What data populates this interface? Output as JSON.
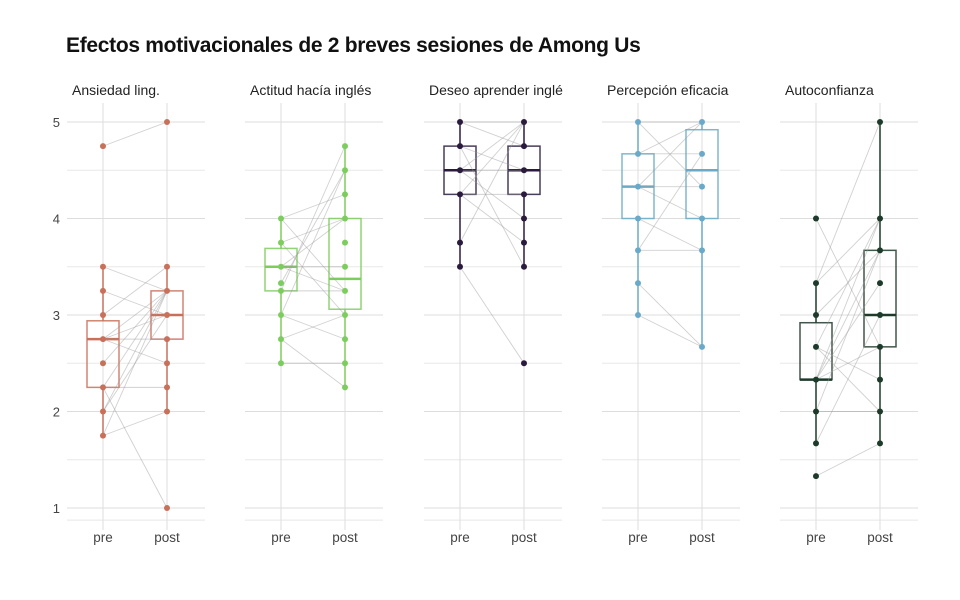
{
  "chart_data": {
    "type": "box",
    "title": "Efectos motivacionales de 2 breves sesiones de Among Us",
    "xlabel": "",
    "ylabel": "",
    "ylim": [
      0.8,
      5.15
    ],
    "yticks": [
      1,
      2,
      3,
      4,
      5
    ],
    "categories": [
      "pre",
      "post"
    ],
    "grid": true,
    "facets": [
      {
        "label": "Ansiedad ling.",
        "color": "#C8705A",
        "boxes": [
          {
            "q1": 2.25,
            "median": 2.75,
            "q3": 2.94,
            "lo": 1.75,
            "hi": 3.5,
            "points": [
              4.75,
              3.5,
              3.25,
              3,
              2.75,
              2.5,
              2.25,
              2,
              1.75
            ]
          },
          {
            "q1": 2.75,
            "median": 3,
            "q3": 3.25,
            "lo": 2,
            "hi": 3.5,
            "points": [
              5,
              3.5,
              3.25,
              3,
              2.75,
              2.5,
              2.25,
              2,
              1
            ]
          }
        ],
        "pairs": [
          [
            4.75,
            5
          ],
          [
            3.5,
            3.25
          ],
          [
            3.25,
            3
          ],
          [
            3,
            3.5
          ],
          [
            2.75,
            3.25
          ],
          [
            2.75,
            3
          ],
          [
            2.75,
            2.75
          ],
          [
            2.75,
            2.5
          ],
          [
            2.5,
            3.25
          ],
          [
            2.25,
            1
          ],
          [
            2.25,
            2.25
          ],
          [
            2.25,
            3.25
          ],
          [
            2,
            3.25
          ],
          [
            2,
            3
          ],
          [
            1.75,
            2
          ],
          [
            1.75,
            3.25
          ]
        ]
      },
      {
        "label": "Actitud hacía inglés",
        "color": "#7DCD5E",
        "boxes": [
          {
            "q1": 3.25,
            "median": 3.5,
            "q3": 3.69,
            "lo": 2.5,
            "hi": 4,
            "points": [
              4,
              3.75,
              3.5,
              3.33,
              3.25,
              3,
              2.75,
              2.5
            ]
          },
          {
            "q1": 3.06,
            "median": 3.375,
            "q3": 4,
            "lo": 2.25,
            "hi": 4.75,
            "points": [
              4.75,
              4.5,
              4.25,
              4,
              3.75,
              3.5,
              3.25,
              3,
              2.75,
              2.5,
              2.25
            ]
          }
        ],
        "pairs": [
          [
            4,
            4.25
          ],
          [
            4,
            3.25
          ],
          [
            3.75,
            4
          ],
          [
            3.75,
            3
          ],
          [
            3.5,
            3.5
          ],
          [
            3.5,
            3.25
          ],
          [
            3.5,
            4
          ],
          [
            3.33,
            4.5
          ],
          [
            3.25,
            4.75
          ],
          [
            3.25,
            3.25
          ],
          [
            3,
            4.5
          ],
          [
            3,
            2.75
          ],
          [
            2.75,
            3
          ],
          [
            2.75,
            2.25
          ],
          [
            2.5,
            2.5
          ]
        ]
      },
      {
        "label": "Deseo aprender inglé",
        "color": "#2A1B3D",
        "boxes": [
          {
            "q1": 4.25,
            "median": 4.5,
            "q3": 4.75,
            "lo": 3.5,
            "hi": 5,
            "points": [
              5,
              4.75,
              4.5,
              4.25,
              3.75,
              3.5
            ]
          },
          {
            "q1": 4.25,
            "median": 4.5,
            "q3": 4.75,
            "lo": 3.5,
            "hi": 5,
            "points": [
              5,
              4.75,
              4.5,
              4.25,
              4,
              3.75,
              3.5,
              2.5
            ]
          }
        ],
        "pairs": [
          [
            5,
            5
          ],
          [
            5,
            4.75
          ],
          [
            4.75,
            4.5
          ],
          [
            4.75,
            3.5
          ],
          [
            4.5,
            4.5
          ],
          [
            4.5,
            5
          ],
          [
            4.5,
            4
          ],
          [
            4.25,
            5
          ],
          [
            4.25,
            4.25
          ],
          [
            4.25,
            3.75
          ],
          [
            3.75,
            5
          ],
          [
            3.5,
            2.5
          ]
        ]
      },
      {
        "label": "Percepción eficacia",
        "color": "#6AAAC8",
        "boxes": [
          {
            "q1": 4,
            "median": 4.33,
            "q3": 4.67,
            "lo": 3,
            "hi": 5,
            "points": [
              5,
              4.67,
              4.33,
              4,
              3.67,
              3.33,
              3
            ]
          },
          {
            "q1": 4,
            "median": 4.5,
            "q3": 4.92,
            "lo": 2.67,
            "hi": 5,
            "points": [
              5,
              4.67,
              4.33,
              4,
              3.67,
              2.67
            ]
          }
        ],
        "pairs": [
          [
            5,
            5
          ],
          [
            5,
            4.33
          ],
          [
            4.67,
            4.67
          ],
          [
            4.67,
            5
          ],
          [
            4.33,
            4.33
          ],
          [
            4.33,
            4
          ],
          [
            4.33,
            5
          ],
          [
            4,
            3.67
          ],
          [
            3.67,
            3.67
          ],
          [
            3.33,
            2.67
          ],
          [
            3,
            2.67
          ],
          [
            3.67,
            4.67
          ]
        ]
      },
      {
        "label": "Autoconfianza",
        "color": "#1E3A2A",
        "boxes": [
          {
            "q1": 2.33,
            "median": 2.33,
            "q3": 2.92,
            "lo": 1.67,
            "hi": 3.33,
            "points": [
              4,
              3.33,
              3,
              2.67,
              2.33,
              2,
              1.67,
              1.33
            ]
          },
          {
            "q1": 2.67,
            "median": 3,
            "q3": 3.67,
            "lo": 1.67,
            "hi": 5,
            "points": [
              5,
              4,
              3.67,
              3.33,
              3,
              2.67,
              2.33,
              2,
              1.67
            ]
          }
        ],
        "pairs": [
          [
            4,
            2.67
          ],
          [
            3.33,
            4
          ],
          [
            3.33,
            5
          ],
          [
            3,
            3.67
          ],
          [
            2.67,
            2.33
          ],
          [
            2.67,
            2
          ],
          [
            2.67,
            4
          ],
          [
            2.33,
            3.33
          ],
          [
            2.33,
            3.67
          ],
          [
            2.33,
            4
          ],
          [
            2.33,
            2.67
          ],
          [
            2,
            2
          ],
          [
            2,
            3.67
          ],
          [
            1.67,
            3
          ],
          [
            1.33,
            1.67
          ]
        ]
      }
    ]
  }
}
